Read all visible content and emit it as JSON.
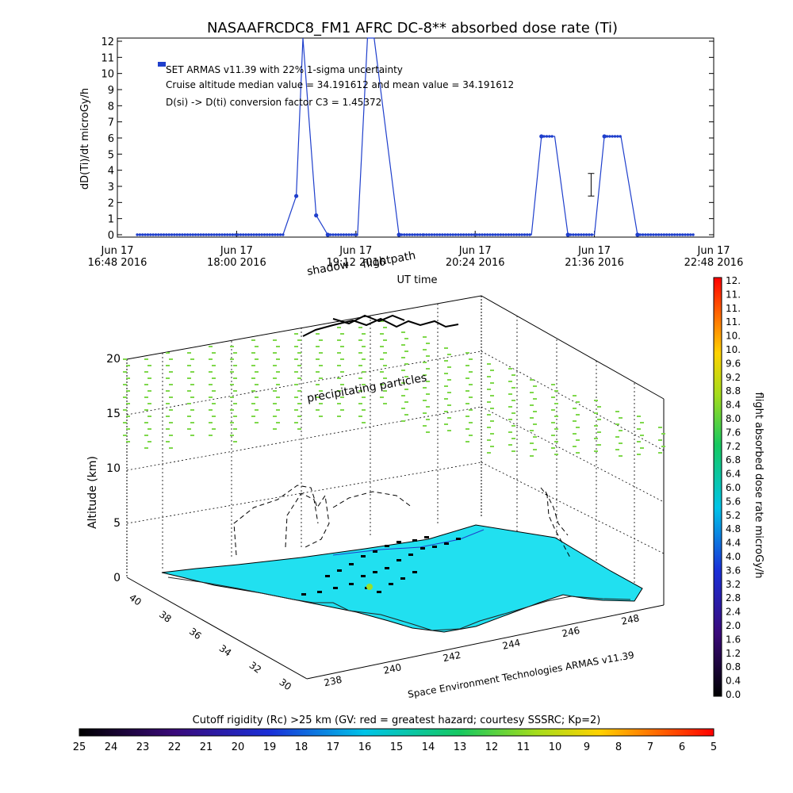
{
  "colors": {
    "series": "#1f3fcc",
    "ground": "#21e0f0",
    "precip": "#7fd84c",
    "axis": "#000000",
    "background": "#ffffff"
  },
  "chart_data": [
    {
      "type": "line",
      "title": "NASAAFRCDC8_FM1 AFRC DC-8** absorbed dose rate (Ti)",
      "xlabel": "UT time",
      "ylabel": "dD(Ti)/dt microGy/h",
      "ylim": [
        0,
        12
      ],
      "yticks": [
        "0",
        "1",
        "2",
        "3",
        "4",
        "5",
        "6",
        "7",
        "8",
        "9",
        "10",
        "11",
        "12"
      ],
      "xticks": [
        {
          "line1": "Jun 17",
          "line2": "16:48 2016"
        },
        {
          "line1": "Jun 17",
          "line2": "18:00 2016"
        },
        {
          "line1": "Jun 17",
          "line2": "19:12 2016"
        },
        {
          "line1": "Jun 17",
          "line2": "20:24 2016"
        },
        {
          "line1": "Jun 17",
          "line2": "21:36 2016"
        },
        {
          "line1": "Jun 17",
          "line2": "22:48 2016"
        }
      ],
      "xrange_minutes": [
        0,
        360
      ],
      "annotations": [
        "SET ARMAS v11.39 with 22% 1-sigma uncertainty",
        "Cruise altitude median value = 34.191612 and mean value = 34.191612",
        "D(si) -> D(ti) conversion factor C3 = 1.45372"
      ],
      "series": [
        {
          "x": [
            12,
            60,
            100,
            108,
            112,
            120,
            127,
            145,
            151,
            155,
            170,
            185,
            250,
            256,
            264,
            272,
            288,
            294,
            304,
            314,
            348
          ],
          "y": [
            0,
            0,
            0,
            2.4,
            14,
            1.2,
            0,
            0,
            14,
            14,
            0,
            0,
            0,
            6.1,
            6.1,
            0,
            0,
            6.1,
            6.1,
            0,
            0
          ]
        }
      ],
      "error_bar": {
        "x": 286,
        "low": 2.4,
        "high": 3.8
      }
    },
    {
      "type": "scatter",
      "title": "",
      "xlabel": "Space Environment Technologies ARMAS v11.39",
      "ylabel": "Altitude (km)",
      "zticks": [
        "0",
        "5",
        "10",
        "15",
        "20"
      ],
      "lon_ticks": [
        "238",
        "240",
        "242",
        "244",
        "246",
        "248"
      ],
      "lat_ticks": [
        "30",
        "32",
        "34",
        "36",
        "38",
        "40"
      ],
      "labels": [
        "shadow",
        "flightpath",
        "precipitating particles"
      ],
      "colorbar": {
        "label": "flight absorbed dose rate microGy/h",
        "ticks": [
          "0.0",
          "0.4",
          "0.8",
          "1.2",
          "1.6",
          "2.0",
          "2.4",
          "2.8",
          "3.2",
          "3.6",
          "4.0",
          "4.4",
          "4.8",
          "5.2",
          "5.6",
          "6.0",
          "6.4",
          "6.8",
          "7.2",
          "7.6",
          "8.0",
          "8.4",
          "8.8",
          "9.2",
          "9.6",
          "10.",
          "10.",
          "11.",
          "11.",
          "11.",
          "12."
        ]
      }
    },
    {
      "type": "heatmap",
      "title": "Cutoff rigidity (Rc) >25 km (GV: red = greatest hazard; courtesy SSSRC; Kp=2)",
      "colorbar_ticks": [
        "25",
        "24",
        "23",
        "22",
        "21",
        "20",
        "19",
        "18",
        "17",
        "16",
        "15",
        "14",
        "13",
        "12",
        "11",
        "10",
        "9",
        "8",
        "7",
        "6",
        "5"
      ]
    }
  ]
}
